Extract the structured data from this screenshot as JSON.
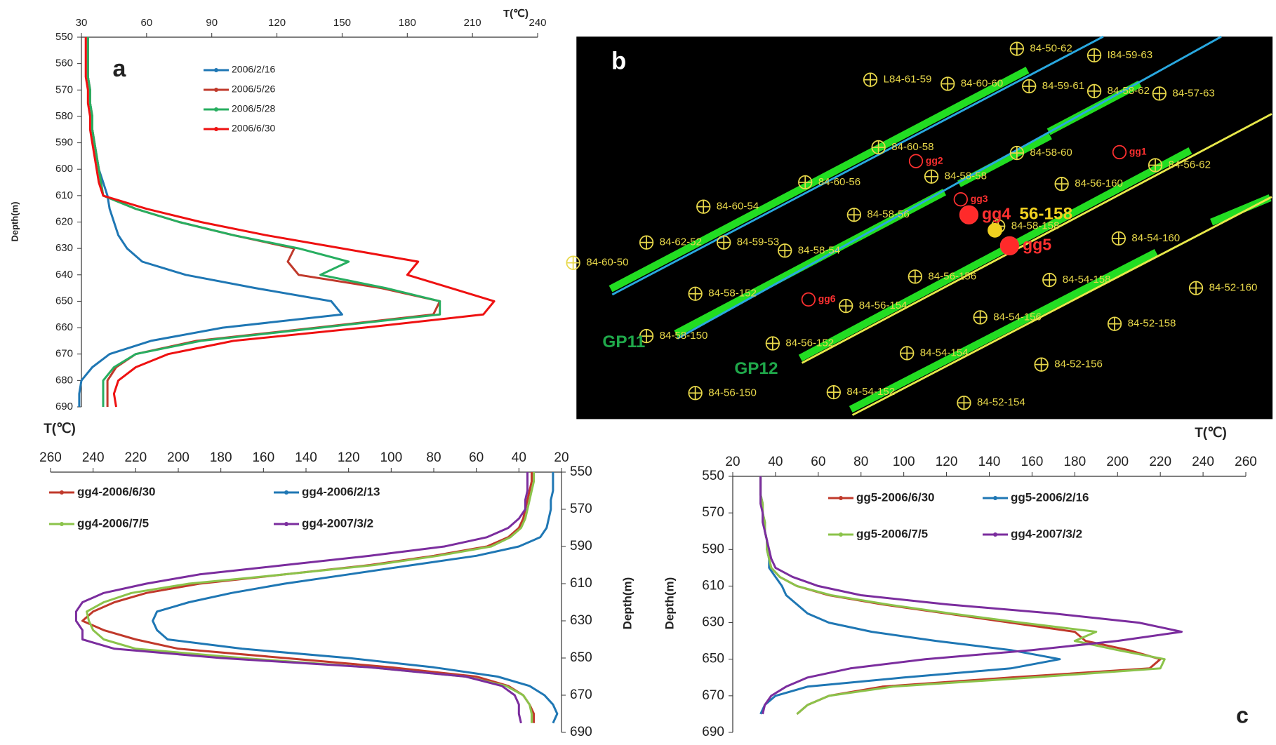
{
  "chart_data": [
    {
      "type": "line",
      "panel": "a",
      "x_label": "T(℃)",
      "y_label": "Depth(m)",
      "xlim": [
        30,
        240
      ],
      "xticks": [
        30,
        60,
        90,
        120,
        150,
        180,
        210,
        240
      ],
      "ylim": [
        550,
        690
      ],
      "yticks": [
        550,
        560,
        570,
        580,
        590,
        600,
        610,
        620,
        630,
        640,
        650,
        660,
        670,
        680,
        690
      ],
      "y": [
        550,
        555,
        560,
        565,
        570,
        575,
        580,
        585,
        590,
        595,
        600,
        605,
        610,
        615,
        620,
        625,
        630,
        635,
        640,
        645,
        650,
        655,
        660,
        665,
        670,
        675,
        680,
        685,
        690
      ],
      "series": [
        {
          "name": "2006/2/16",
          "color": "#1f77b4",
          "values": [
            33,
            33,
            33,
            33,
            34,
            34,
            35,
            35,
            36,
            37,
            38,
            40,
            42,
            43,
            45,
            47,
            51,
            58,
            78,
            110,
            145,
            150,
            95,
            62,
            43,
            35,
            30,
            29,
            29
          ]
        },
        {
          "name": "2006/5/26",
          "color": "#c0392b",
          "values": [
            33,
            33,
            33,
            33,
            34,
            34,
            35,
            35,
            36,
            37,
            38,
            39,
            40,
            55,
            75,
            100,
            128,
            125,
            130,
            168,
            195,
            192,
            138,
            83,
            55,
            46,
            42,
            42,
            42
          ]
        },
        {
          "name": "2006/5/28",
          "color": "#27ae60",
          "values": [
            33,
            33,
            33,
            33,
            34,
            34,
            35,
            35,
            36,
            37,
            38,
            39,
            40,
            55,
            75,
            100,
            130,
            153,
            140,
            170,
            195,
            195,
            140,
            85,
            55,
            45,
            40,
            40,
            40
          ]
        },
        {
          "name": "2006/6/30",
          "color": "#ee1111",
          "values": [
            32,
            32,
            32,
            32,
            33,
            33,
            34,
            34,
            35,
            36,
            37,
            38,
            40,
            60,
            85,
            115,
            150,
            185,
            180,
            200,
            220,
            215,
            160,
            100,
            70,
            55,
            47,
            45,
            46
          ]
        }
      ]
    },
    {
      "type": "line",
      "x_label": "T(℃)",
      "y_label": "Depth(m)",
      "xlim": [
        260,
        20
      ],
      "xticks": [
        260,
        240,
        220,
        200,
        180,
        160,
        140,
        120,
        100,
        80,
        60,
        40,
        20
      ],
      "ylim": [
        550,
        690
      ],
      "yticks": [
        550,
        570,
        590,
        610,
        630,
        650,
        670,
        690
      ],
      "y": [
        550,
        555,
        560,
        565,
        570,
        575,
        580,
        585,
        590,
        595,
        600,
        605,
        610,
        615,
        620,
        625,
        630,
        635,
        640,
        645,
        650,
        655,
        660,
        665,
        670,
        675,
        680,
        685
      ],
      "series": [
        {
          "name": "gg4-2006/6/30",
          "color": "#c0392b",
          "values": [
            34,
            34,
            35,
            36,
            37,
            38,
            40,
            45,
            55,
            80,
            110,
            150,
            190,
            215,
            230,
            240,
            245,
            235,
            220,
            200,
            150,
            100,
            60,
            45,
            38,
            35,
            33,
            33
          ]
        },
        {
          "name": "gg4-2006/2/13",
          "color": "#1f77b4",
          "values": [
            24,
            24,
            24,
            25,
            25,
            26,
            27,
            30,
            40,
            60,
            90,
            120,
            150,
            175,
            195,
            210,
            212,
            210,
            205,
            170,
            120,
            80,
            50,
            35,
            28,
            24,
            22,
            24
          ]
        },
        {
          "name": "gg4-2006/7/5",
          "color": "#8bc34a",
          "values": [
            33,
            33,
            34,
            35,
            36,
            37,
            39,
            44,
            53,
            78,
            108,
            150,
            195,
            222,
            235,
            243,
            242,
            240,
            235,
            220,
            170,
            110,
            65,
            46,
            38,
            35,
            34,
            34
          ]
        },
        {
          "name": "gg4-2007/3/2",
          "color": "#7b2d9e",
          "values": [
            36,
            36,
            36,
            37,
            37,
            40,
            45,
            55,
            75,
            110,
            150,
            190,
            215,
            235,
            245,
            248,
            248,
            245,
            245,
            230,
            180,
            110,
            65,
            48,
            42,
            40,
            40,
            39
          ]
        }
      ]
    },
    {
      "type": "line",
      "panel": "c",
      "x_label": "T(℃)",
      "y_label": "Depth(m)",
      "xlim": [
        20,
        260
      ],
      "xticks": [
        20,
        40,
        60,
        80,
        100,
        120,
        140,
        160,
        180,
        200,
        220,
        240,
        260
      ],
      "ylim": [
        550,
        690
      ],
      "yticks": [
        550,
        570,
        590,
        610,
        630,
        650,
        670,
        690
      ],
      "y": [
        550,
        555,
        560,
        565,
        570,
        575,
        580,
        585,
        590,
        595,
        600,
        605,
        610,
        615,
        620,
        625,
        630,
        635,
        640,
        645,
        650,
        655,
        660,
        665,
        670,
        675,
        680
      ],
      "series": [
        {
          "name": "gg5-2006/6/30",
          "color": "#c0392b",
          "values": [
            33,
            33,
            33,
            34,
            34,
            35,
            35,
            36,
            36,
            37,
            38,
            42,
            50,
            65,
            90,
            120,
            150,
            180,
            185,
            205,
            220,
            215,
            150,
            90,
            65,
            55,
            50
          ]
        },
        {
          "name": "gg5-2006/2/16",
          "color": "#1f77b4",
          "values": [
            33,
            33,
            33,
            34,
            34,
            35,
            35,
            36,
            36,
            37,
            37,
            40,
            43,
            45,
            50,
            55,
            65,
            85,
            115,
            150,
            173,
            150,
            100,
            55,
            40,
            35,
            33
          ]
        },
        {
          "name": "gg5-2006/7/5",
          "color": "#8bc34a",
          "values": [
            33,
            33,
            33,
            34,
            34,
            35,
            35,
            36,
            36,
            37,
            38,
            42,
            50,
            66,
            92,
            122,
            155,
            190,
            180,
            200,
            222,
            220,
            160,
            95,
            65,
            55,
            50
          ]
        },
        {
          "name": "gg4-2007/3/2",
          "color": "#7b2d9e",
          "values": [
            33,
            33,
            33,
            33,
            34,
            34,
            35,
            36,
            37,
            38,
            40,
            48,
            60,
            80,
            120,
            170,
            210,
            230,
            200,
            160,
            110,
            75,
            55,
            45,
            38,
            35,
            34
          ]
        }
      ]
    }
  ],
  "map": {
    "panel": "b",
    "profiles": [
      "GP11",
      "GP12"
    ],
    "highlight": "56-158",
    "wells": [
      "84-50-62",
      "I84-59-63",
      "L84-61-59",
      "84-60-60",
      "84-59-61",
      "84-58-62",
      "84-57-63",
      "84-60-58",
      "84-58-60",
      "84-56-62",
      "84-60-56",
      "84-58-58",
      "84-56-160",
      "84-60-54",
      "84-58-56",
      "84-58-158",
      "84-62-52",
      "84-59-53",
      "84-58-54",
      "84-54-160",
      "84-60-50",
      "84-58-152",
      "84-56-156",
      "84-54-158",
      "84-52-160",
      "84-56-154",
      "84-54-156",
      "84-52-158",
      "84-58-150",
      "84-56-152",
      "84-54-154",
      "84-52-156",
      "84-56-150",
      "84-54-152",
      "84-52-154"
    ],
    "observation_wells": [
      "gg1",
      "gg2",
      "gg3",
      "gg4",
      "gg5",
      "gg6"
    ]
  }
}
